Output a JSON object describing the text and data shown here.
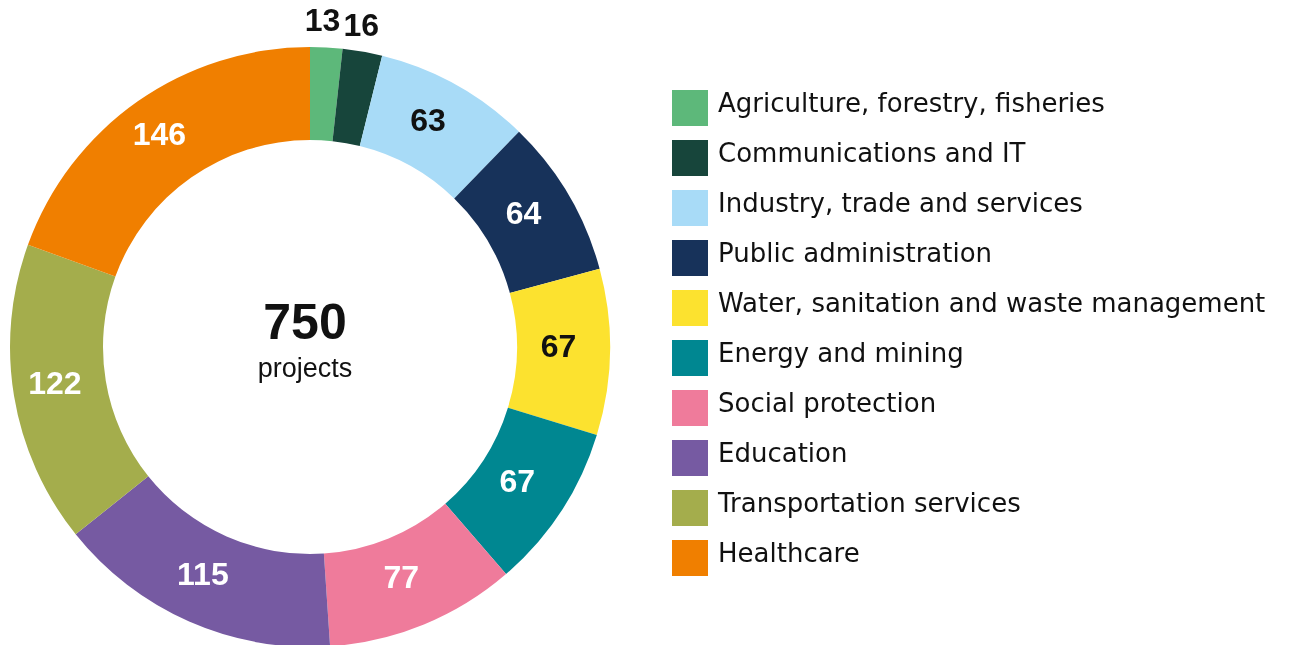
{
  "chart_data": {
    "type": "donut",
    "categories": [
      "Agriculture, forestry, fisheries",
      "Communications and IT",
      "Industry, trade and services",
      "Public administration",
      "Water, sanitation and waste management",
      "Energy and mining",
      "Social protection",
      "Education",
      "Transportation services",
      "Healthcare"
    ],
    "values": [
      13,
      16,
      63,
      64,
      67,
      67,
      77,
      115,
      122,
      146
    ],
    "colors": [
      "#5db87a",
      "#17453b",
      "#a8dbf7",
      "#17325a",
      "#fce22f",
      "#008791",
      "#ef7b9b",
      "#765aa2",
      "#a4ad4c",
      "#f07f00"
    ],
    "data_labels": true,
    "legend": "right",
    "annotations": [
      "750",
      "projects"
    ]
  }
}
